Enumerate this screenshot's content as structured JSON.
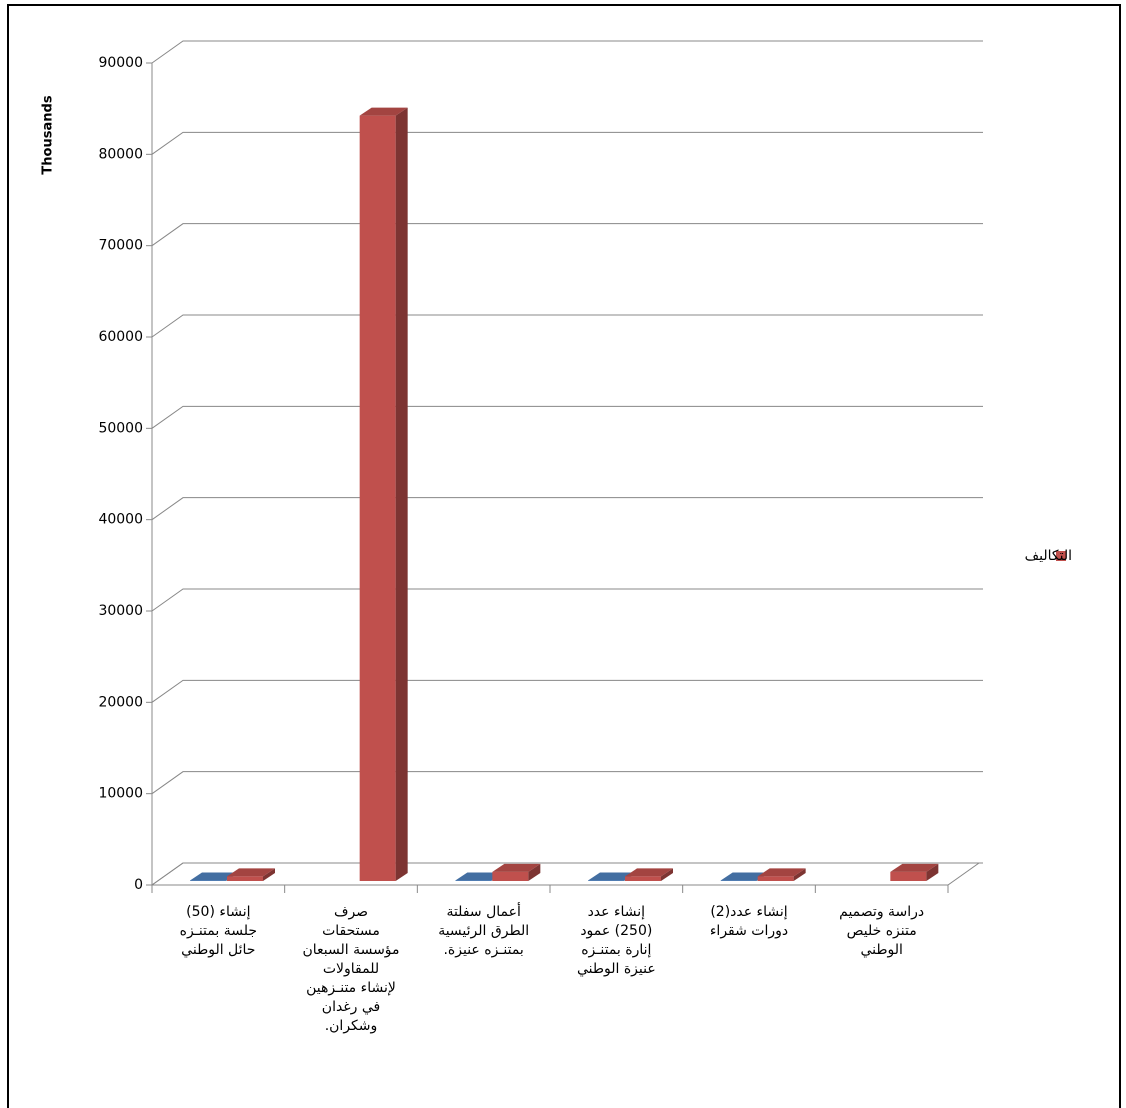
{
  "chart_data": {
    "type": "bar3d",
    "y_label": "Thousands",
    "categories": [
      "إنشاء (50)\nجلسة بمتنـزه\nحائل الوطني",
      "صرف\nمستحقات\nمؤسسة السبعان\nللمقاولات\nلإنشاء متنـزهين\nفي رغدان\nوشكران.",
      "أعمال سفلتة\nالطرق الرئيسية\nبمتنـزه عنيزة.",
      "إنشاء عدد\n(250) عمود\nإنارة بمتنـزه\nعنيزة الوطني",
      "إنشاء عدد(2)\nدورات شقراء",
      "دراسة وتصميم\nمتنزه خليص\nالوطني"
    ],
    "series": [
      {
        "color": "#4f81bd",
        "values": [
          50,
          null,
          50,
          50,
          50,
          null
        ]
      },
      {
        "name": "التكاليف",
        "color": "#c0504d",
        "values": [
          500,
          83800,
          1000,
          500,
          500,
          1000
        ]
      }
    ],
    "ylim": [
      0,
      90000
    ],
    "yticks": [
      0,
      10000,
      20000,
      30000,
      40000,
      50000,
      60000,
      70000,
      80000,
      90000
    ],
    "grid": true,
    "legend": "right"
  }
}
